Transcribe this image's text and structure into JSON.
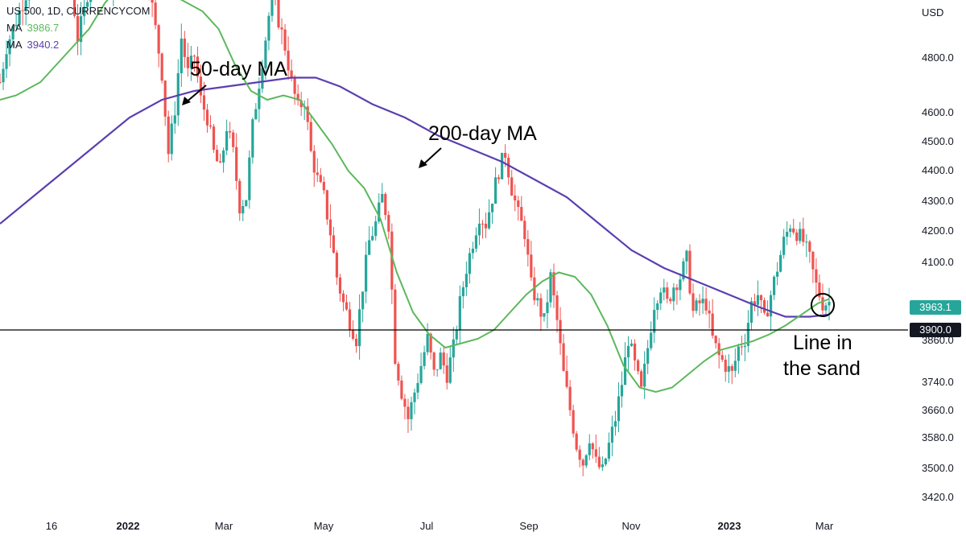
{
  "header": {
    "symbol": "US 500, 1D, CURRENCYCOM",
    "ma1_label": "MA",
    "ma1_value": "3986.7",
    "ma2_label": "MA",
    "ma2_value": "3940.2"
  },
  "currency_label": "USD",
  "colors": {
    "up": "#26a69a",
    "down": "#ef5350",
    "ma50": "#5cb85c",
    "ma200": "#5b3fb0",
    "price_tag": "#26a69a"
  },
  "price_tag": "3963.1",
  "line_tag": "3900.0",
  "annotations": {
    "ma50": "50-day MA",
    "ma200": "200-day MA",
    "sand_line1": "Line in",
    "sand_line2": "the sand"
  },
  "chart_data": {
    "type": "candlestick",
    "y_ticks": [
      3420,
      3500,
      3580,
      3660,
      3740,
      3860,
      3900,
      4100,
      4200,
      4300,
      4400,
      4500,
      4600,
      4800
    ],
    "y_tick_labels": [
      "3420.0",
      "3500.0",
      "3580.0",
      "3660.0",
      "3740.0",
      "3860.0",
      "",
      "4100.0",
      "4200.0",
      "4300.0",
      "4400.0",
      "4500.0",
      "4600.0",
      "4800.0"
    ],
    "x_ticks": [
      {
        "label": "16",
        "bold": false
      },
      {
        "label": "2022",
        "bold": true
      },
      {
        "label": "Mar",
        "bold": false
      },
      {
        "label": "May",
        "bold": false
      },
      {
        "label": "Jul",
        "bold": false
      },
      {
        "label": "Sep",
        "bold": false
      },
      {
        "label": "Nov",
        "bold": false
      },
      {
        "label": "2023",
        "bold": true
      },
      {
        "label": "Mar",
        "bold": false
      }
    ],
    "horizontal_line": 3900,
    "last_price": 3963.1,
    "close_path": [
      [
        0,
        4460
      ],
      [
        8,
        4540
      ],
      [
        16,
        4580
      ],
      [
        24,
        4620
      ],
      [
        32,
        4660
      ],
      [
        40,
        4700
      ],
      [
        48,
        4720
      ],
      [
        56,
        4700
      ],
      [
        64,
        4720
      ],
      [
        72,
        4740
      ],
      [
        80,
        4700
      ],
      [
        88,
        4680
      ],
      [
        96,
        4560
      ],
      [
        104,
        4620
      ],
      [
        112,
        4700
      ],
      [
        120,
        4720
      ],
      [
        128,
        4700
      ],
      [
        136,
        4640
      ],
      [
        144,
        4760
      ],
      [
        152,
        4780
      ],
      [
        160,
        4790
      ],
      [
        168,
        4720
      ],
      [
        176,
        4700
      ],
      [
        184,
        4680
      ],
      [
        192,
        4580
      ],
      [
        200,
        4480
      ],
      [
        208,
        4300
      ],
      [
        216,
        4400
      ],
      [
        224,
        4560
      ],
      [
        232,
        4480
      ],
      [
        240,
        4520
      ],
      [
        248,
        4420
      ],
      [
        256,
        4380
      ],
      [
        264,
        4300
      ],
      [
        272,
        4260
      ],
      [
        280,
        4360
      ],
      [
        288,
        4300
      ],
      [
        296,
        4180
      ],
      [
        304,
        4200
      ],
      [
        312,
        4360
      ],
      [
        320,
        4460
      ],
      [
        328,
        4560
      ],
      [
        336,
        4660
      ],
      [
        344,
        4600
      ],
      [
        352,
        4540
      ],
      [
        360,
        4460
      ],
      [
        368,
        4400
      ],
      [
        376,
        4420
      ],
      [
        384,
        4300
      ],
      [
        392,
        4240
      ],
      [
        400,
        4200
      ],
      [
        408,
        4120
      ],
      [
        416,
        4020
      ],
      [
        424,
        3960
      ],
      [
        432,
        3920
      ],
      [
        440,
        3880
      ],
      [
        448,
        4000
      ],
      [
        456,
        4100
      ],
      [
        464,
        4140
      ],
      [
        472,
        4200
      ],
      [
        480,
        4140
      ],
      [
        488,
        3840
      ],
      [
        496,
        3760
      ],
      [
        504,
        3700
      ],
      [
        512,
        3760
      ],
      [
        520,
        3820
      ],
      [
        528,
        3880
      ],
      [
        536,
        3800
      ],
      [
        544,
        3840
      ],
      [
        552,
        3800
      ],
      [
        560,
        3860
      ],
      [
        568,
        3960
      ],
      [
        576,
        4040
      ],
      [
        584,
        4100
      ],
      [
        592,
        4160
      ],
      [
        600,
        4140
      ],
      [
        608,
        4200
      ],
      [
        616,
        4260
      ],
      [
        624,
        4300
      ],
      [
        632,
        4220
      ],
      [
        640,
        4160
      ],
      [
        648,
        4120
      ],
      [
        656,
        4000
      ],
      [
        664,
        3960
      ],
      [
        672,
        3920
      ],
      [
        680,
        4020
      ],
      [
        688,
        3920
      ],
      [
        696,
        3800
      ],
      [
        704,
        3720
      ],
      [
        712,
        3640
      ],
      [
        720,
        3600
      ],
      [
        728,
        3660
      ],
      [
        736,
        3600
      ],
      [
        744,
        3580
      ],
      [
        752,
        3640
      ],
      [
        760,
        3700
      ],
      [
        768,
        3780
      ],
      [
        776,
        3880
      ],
      [
        784,
        3820
      ],
      [
        792,
        3760
      ],
      [
        800,
        3860
      ],
      [
        808,
        3960
      ],
      [
        816,
        4000
      ],
      [
        824,
        3960
      ],
      [
        832,
        4000
      ],
      [
        840,
        4020
      ],
      [
        848,
        4060
      ],
      [
        856,
        3940
      ],
      [
        864,
        3960
      ],
      [
        872,
        3960
      ],
      [
        880,
        3880
      ],
      [
        888,
        3840
      ],
      [
        896,
        3820
      ],
      [
        904,
        3800
      ],
      [
        912,
        3860
      ],
      [
        920,
        3880
      ],
      [
        928,
        3960
      ],
      [
        936,
        3980
      ],
      [
        944,
        3920
      ],
      [
        952,
        3980
      ],
      [
        960,
        4040
      ],
      [
        968,
        4100
      ],
      [
        976,
        4140
      ],
      [
        984,
        4120
      ],
      [
        992,
        4100
      ],
      [
        1000,
        4060
      ],
      [
        1008,
        4000
      ],
      [
        1016,
        3960
      ],
      [
        1024,
        3963
      ]
    ],
    "ma50_path": [
      [
        0,
        4420
      ],
      [
        20,
        4430
      ],
      [
        50,
        4460
      ],
      [
        80,
        4520
      ],
      [
        110,
        4580
      ],
      [
        130,
        4640
      ],
      [
        150,
        4680
      ],
      [
        170,
        4700
      ],
      [
        190,
        4690
      ],
      [
        210,
        4660
      ],
      [
        230,
        4640
      ],
      [
        250,
        4620
      ],
      [
        270,
        4580
      ],
      [
        290,
        4500
      ],
      [
        310,
        4440
      ],
      [
        330,
        4420
      ],
      [
        350,
        4430
      ],
      [
        370,
        4420
      ],
      [
        390,
        4370
      ],
      [
        410,
        4320
      ],
      [
        430,
        4260
      ],
      [
        450,
        4220
      ],
      [
        470,
        4150
      ],
      [
        490,
        4030
      ],
      [
        510,
        3940
      ],
      [
        530,
        3890
      ],
      [
        550,
        3860
      ],
      [
        570,
        3870
      ],
      [
        590,
        3880
      ],
      [
        610,
        3900
      ],
      [
        630,
        3940
      ],
      [
        650,
        3980
      ],
      [
        670,
        4010
      ],
      [
        690,
        4030
      ],
      [
        710,
        4020
      ],
      [
        730,
        3980
      ],
      [
        750,
        3910
      ],
      [
        770,
        3820
      ],
      [
        790,
        3770
      ],
      [
        810,
        3760
      ],
      [
        830,
        3770
      ],
      [
        850,
        3800
      ],
      [
        870,
        3830
      ],
      [
        890,
        3855
      ],
      [
        910,
        3865
      ],
      [
        930,
        3875
      ],
      [
        950,
        3890
      ],
      [
        970,
        3910
      ],
      [
        990,
        3935
      ],
      [
        1010,
        3960
      ],
      [
        1024,
        3970
      ]
    ],
    "ma200_path": [
      [
        0,
        4140
      ],
      [
        40,
        4200
      ],
      [
        80,
        4260
      ],
      [
        120,
        4320
      ],
      [
        160,
        4380
      ],
      [
        200,
        4420
      ],
      [
        240,
        4440
      ],
      [
        280,
        4450
      ],
      [
        320,
        4460
      ],
      [
        360,
        4470
      ],
      [
        390,
        4470
      ],
      [
        420,
        4450
      ],
      [
        460,
        4410
      ],
      [
        500,
        4380
      ],
      [
        540,
        4340
      ],
      [
        580,
        4310
      ],
      [
        620,
        4280
      ],
      [
        660,
        4240
      ],
      [
        700,
        4200
      ],
      [
        740,
        4140
      ],
      [
        780,
        4080
      ],
      [
        820,
        4040
      ],
      [
        860,
        4010
      ],
      [
        900,
        3980
      ],
      [
        940,
        3950
      ],
      [
        970,
        3930
      ],
      [
        1000,
        3930
      ],
      [
        1024,
        3935
      ]
    ]
  }
}
